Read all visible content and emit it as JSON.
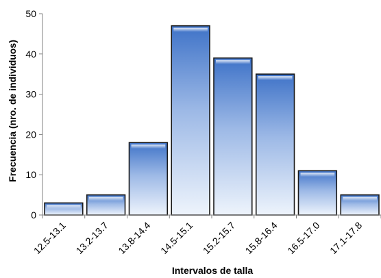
{
  "chart_data": {
    "type": "bar",
    "title": "",
    "xlabel": "Intervalos de talla",
    "ylabel": "Frecuencia (nro. de individuos)",
    "categories": [
      "12.5-13.1",
      "13.2-13.7",
      "13.8-14.4",
      "14.5-15.1",
      "15.2-15.7",
      "15.8-16.4",
      "16.5-17.0",
      "17.1-17.8"
    ],
    "values": [
      3,
      5,
      18,
      47,
      39,
      35,
      11,
      5
    ],
    "ylim": [
      0,
      50
    ],
    "yticks": [
      0,
      10,
      20,
      30,
      40,
      50
    ],
    "grid": false,
    "legend": "none",
    "colors": {
      "bar_top": "#3f73c8",
      "bar_mid": "#a9c3ea",
      "bar_bottom": "#e8f0fb",
      "bar_edge": "#1a1a1a",
      "axis": "#808080"
    }
  }
}
